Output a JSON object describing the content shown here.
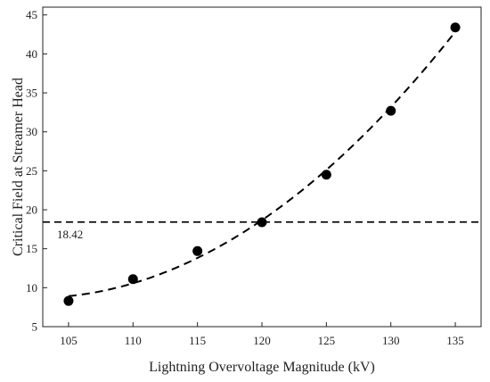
{
  "chart_data": {
    "type": "scatter",
    "xlabel": "Lightning Overvoltage Magnitude (kV)",
    "ylabel": "Critical Field at Streamer Head",
    "xlim": [
      103,
      137
    ],
    "ylim": [
      5,
      46
    ],
    "x_ticks": [
      105,
      110,
      115,
      120,
      125,
      130,
      135
    ],
    "y_ticks": [
      5,
      10,
      15,
      20,
      25,
      30,
      35,
      40,
      45
    ],
    "grid": false,
    "series": [
      {
        "x": [
          105,
          110,
          115,
          120,
          125,
          130,
          135
        ],
        "y": [
          8.3,
          11.1,
          14.7,
          18.4,
          24.5,
          32.7,
          43.4
        ],
        "marker": "circle",
        "color": "#000000",
        "fit_line": "dashed"
      }
    ],
    "reference_line": {
      "y": 18.42,
      "label": "18.42",
      "style": "dashed"
    }
  }
}
